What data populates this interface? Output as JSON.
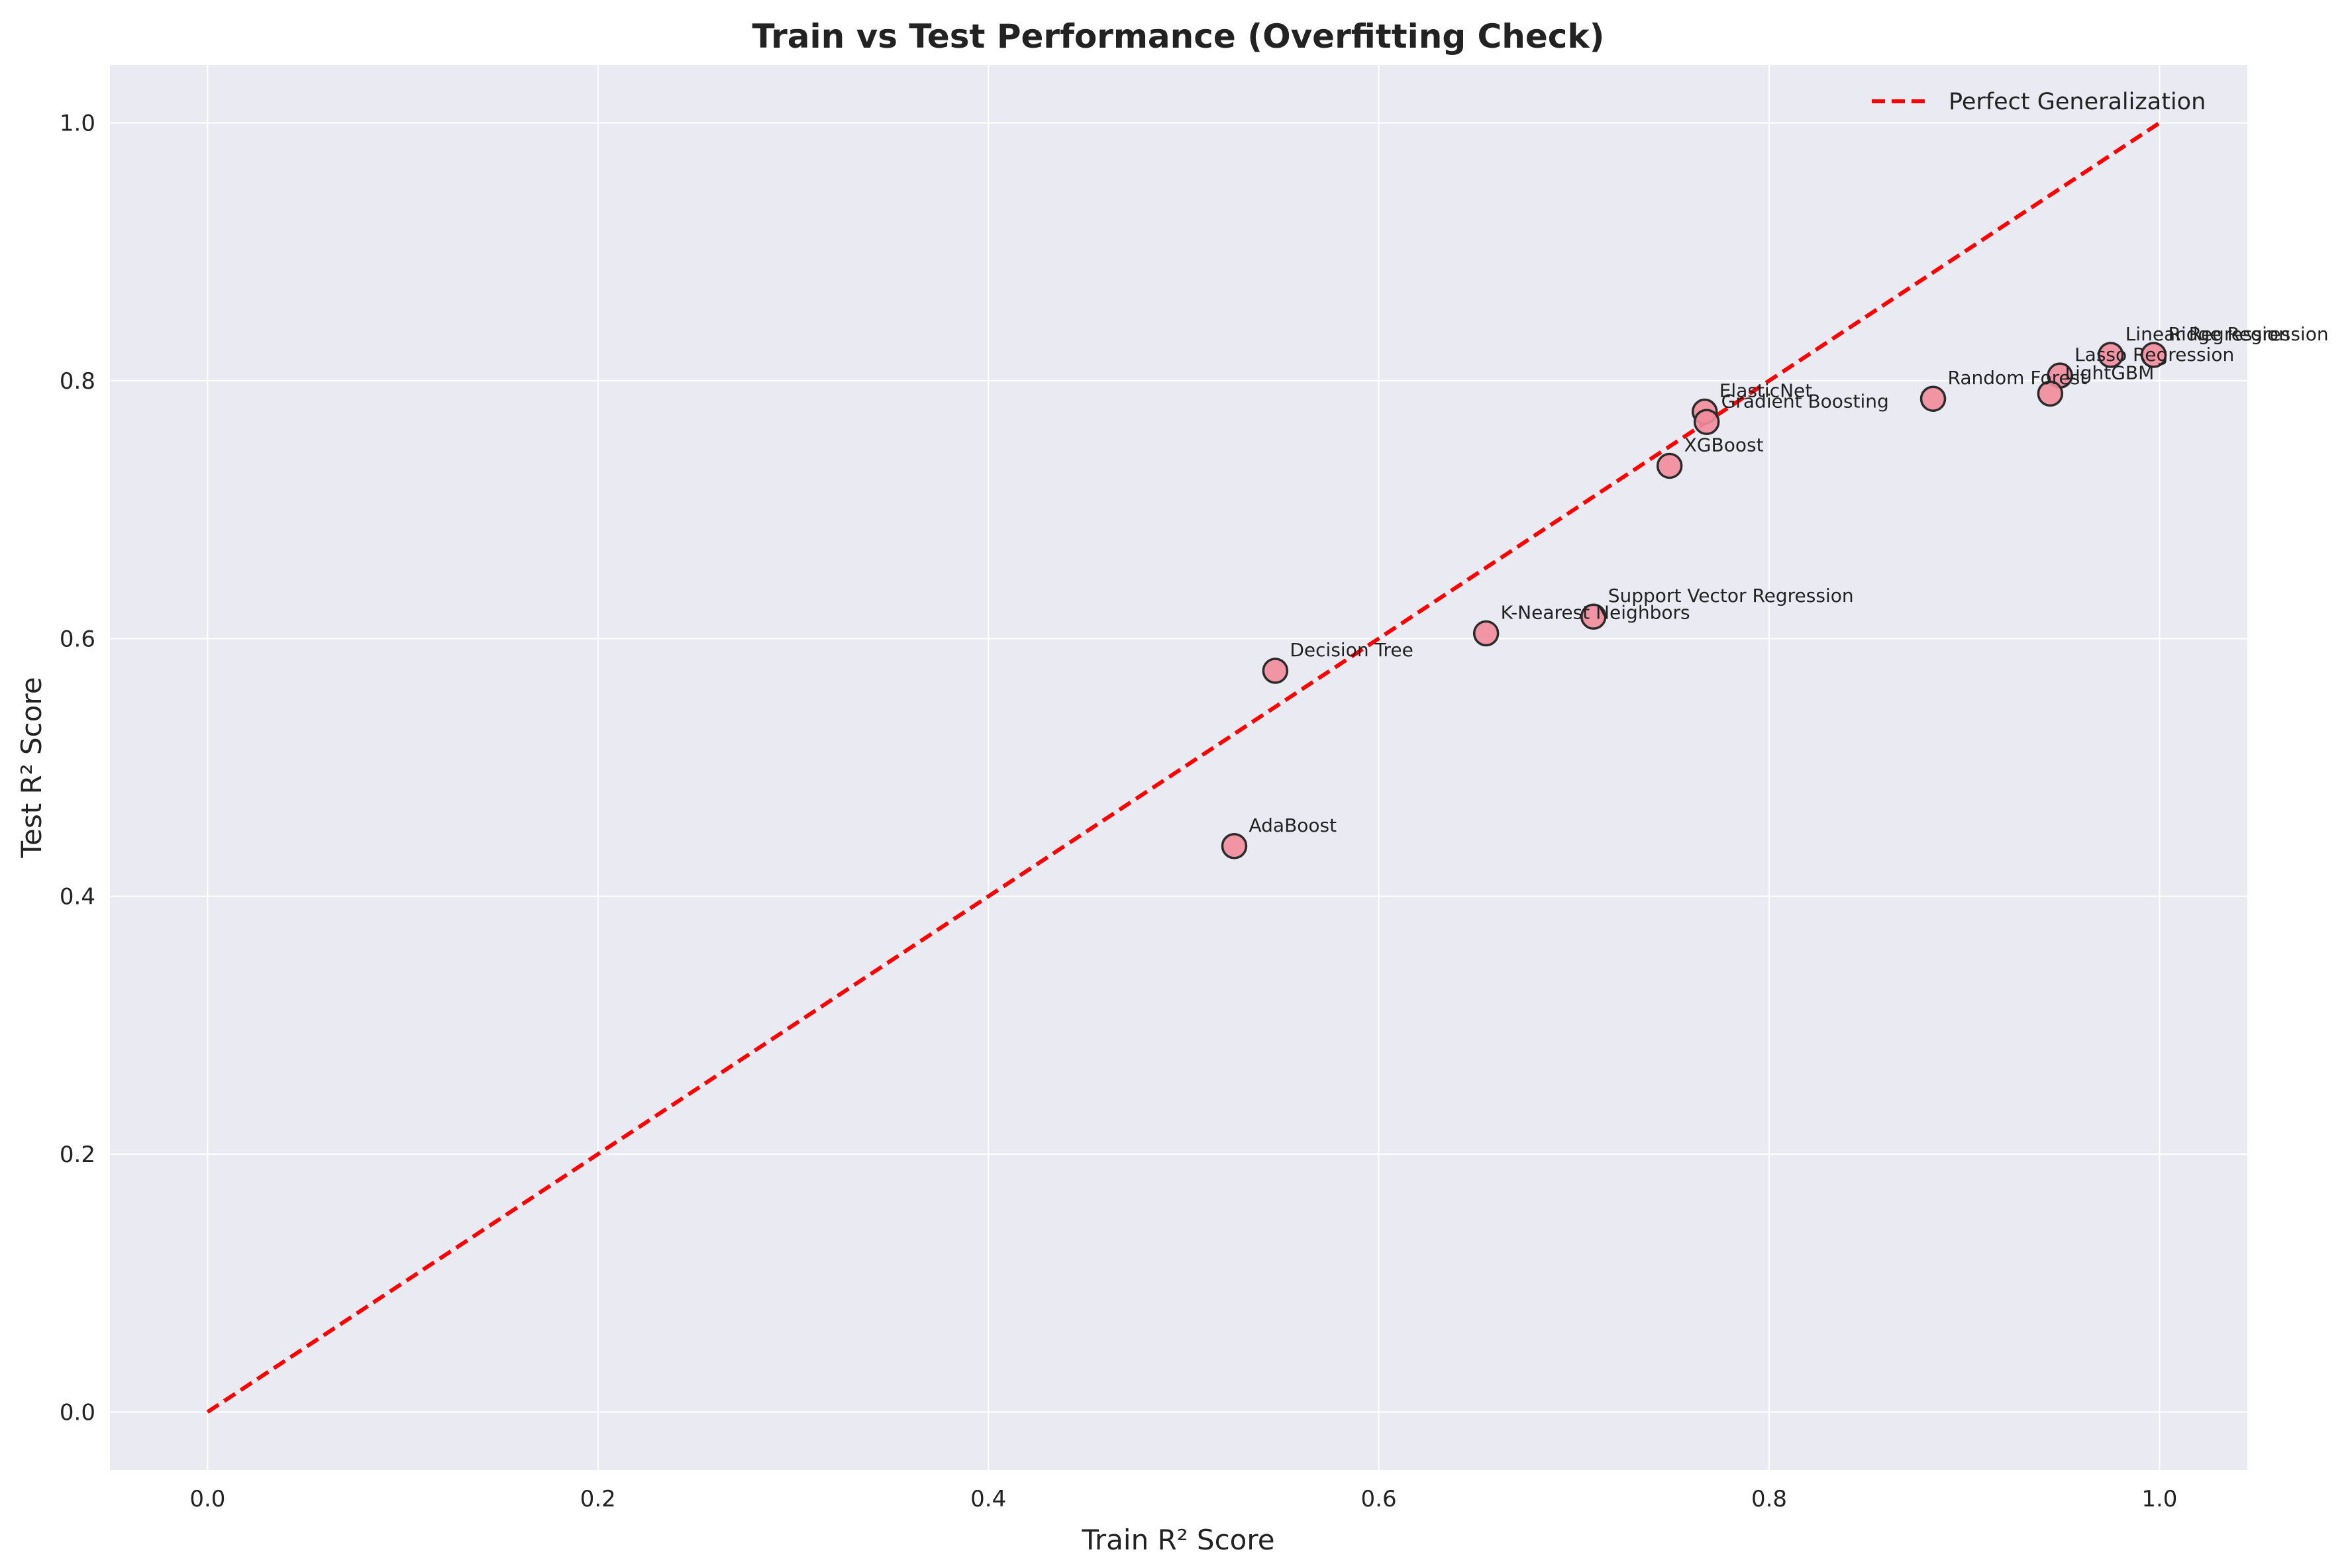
{
  "chart_data": {
    "type": "scatter",
    "title": "Train vs Test Performance (Overfitting Check)",
    "xlabel": "Train R² Score",
    "ylabel": "Test R² Score",
    "xlim": [
      -0.05,
      1.045
    ],
    "ylim": [
      -0.045,
      1.045
    ],
    "xticks": [
      0.0,
      0.2,
      0.4,
      0.6,
      0.8,
      1.0
    ],
    "yticks": [
      0.0,
      0.2,
      0.4,
      0.6,
      0.8,
      1.0
    ],
    "xtick_labels": [
      "0.0",
      "0.2",
      "0.4",
      "0.6",
      "0.8",
      "1.0"
    ],
    "ytick_labels": [
      "0.0",
      "0.2",
      "0.4",
      "0.6",
      "0.8",
      "1.0"
    ],
    "grid": true,
    "legend": {
      "position": "top-right",
      "entries": [
        "Perfect Generalization"
      ]
    },
    "reference_line": {
      "name": "Perfect Generalization",
      "x": [
        0,
        1
      ],
      "y": [
        0,
        1
      ],
      "color": "#ff0000",
      "style": "dashed"
    },
    "marker_color": "#f28b9b",
    "marker_edge_color": "#2b2b2b",
    "background_color": "#eaeaf2",
    "points": [
      {
        "label": "Ridge Regression",
        "x": 0.997,
        "y": 0.82
      },
      {
        "label": "Linear Regression",
        "x": 0.975,
        "y": 0.82
      },
      {
        "label": "Lasso Regression",
        "x": 0.949,
        "y": 0.804
      },
      {
        "label": "LightGBM",
        "x": 0.944,
        "y": 0.79
      },
      {
        "label": "Random Forest",
        "x": 0.884,
        "y": 0.786
      },
      {
        "label": "ElasticNet",
        "x": 0.767,
        "y": 0.776
      },
      {
        "label": "Gradient Boosting",
        "x": 0.768,
        "y": 0.768
      },
      {
        "label": "XGBoost",
        "x": 0.749,
        "y": 0.734
      },
      {
        "label": "Support Vector Regression",
        "x": 0.71,
        "y": 0.617
      },
      {
        "label": "K-Nearest Neighbors",
        "x": 0.655,
        "y": 0.604
      },
      {
        "label": "Decision Tree",
        "x": 0.547,
        "y": 0.575
      },
      {
        "label": "AdaBoost",
        "x": 0.526,
        "y": 0.439
      }
    ]
  }
}
